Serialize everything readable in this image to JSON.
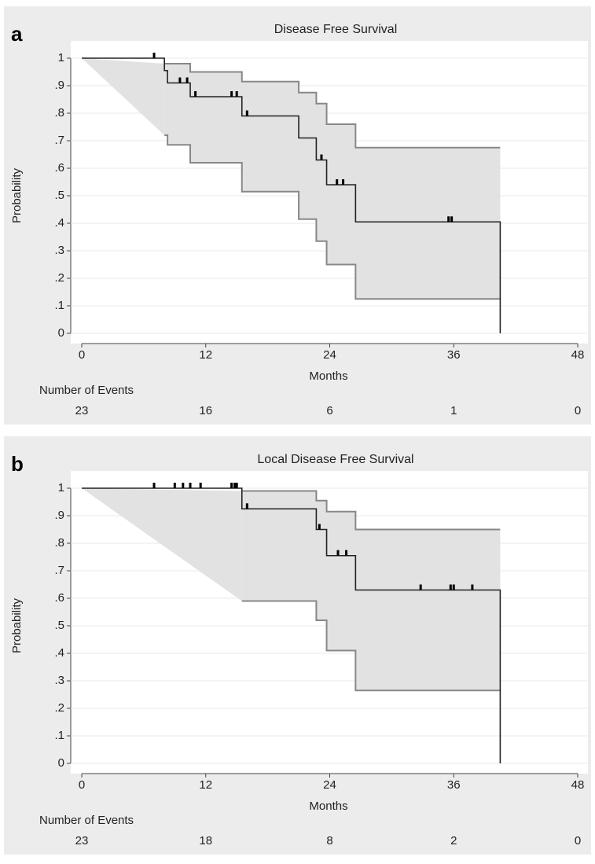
{
  "chart_data": [
    {
      "type": "step",
      "panel": "a",
      "title": "Disease Free Survival",
      "xlabel": "Months",
      "ylabel": "Probability",
      "xlim": [
        0,
        48
      ],
      "ylim": [
        0,
        1
      ],
      "xticks": [
        0,
        12,
        24,
        36,
        48
      ],
      "yticks": [
        0,
        {
          "value": 0.1,
          "label": ".1"
        },
        {
          "value": 0.2,
          "label": ".2"
        },
        {
          "value": 0.3,
          "label": ".3"
        },
        {
          "value": 0.4,
          "label": ".4"
        },
        {
          "value": 0.5,
          "label": ".5"
        },
        {
          "value": 0.6,
          "label": ".6"
        },
        {
          "value": 0.7,
          "label": ".7"
        },
        {
          "value": 0.8,
          "label": ".8"
        },
        {
          "value": 0.9,
          "label": ".9"
        },
        1
      ],
      "grid": true,
      "line_color": "#222222",
      "band_color": "#888888",
      "band_fill": "#e2e2e2",
      "survival": {
        "x": [
          0,
          8,
          8,
          8.3,
          8.3,
          10.5,
          10.5,
          15.5,
          15.5,
          21,
          21,
          22.7,
          22.7,
          23.7,
          23.7,
          26.5,
          26.5,
          40.5,
          40.5
        ],
        "y": [
          1,
          1,
          0.955,
          0.955,
          0.91,
          0.91,
          0.86,
          0.86,
          0.79,
          0.79,
          0.71,
          0.71,
          0.63,
          0.63,
          0.54,
          0.54,
          0.405,
          0.405,
          0
        ]
      },
      "upper": {
        "x": [
          8,
          10.5,
          10.5,
          15.5,
          15.5,
          21,
          21,
          22.7,
          22.7,
          23.7,
          23.7,
          26.5,
          26.5,
          40.5
        ],
        "y": [
          0.98,
          0.98,
          0.95,
          0.95,
          0.915,
          0.915,
          0.875,
          0.875,
          0.835,
          0.835,
          0.76,
          0.76,
          0.675,
          0.675
        ]
      },
      "lower": {
        "x": [
          8,
          8.3,
          8.3,
          10.5,
          10.5,
          15.5,
          15.5,
          21,
          21,
          22.7,
          22.7,
          23.7,
          23.7,
          26.5,
          26.5,
          40.5
        ],
        "y": [
          0.72,
          0.72,
          0.685,
          0.685,
          0.62,
          0.62,
          0.515,
          0.515,
          0.415,
          0.415,
          0.335,
          0.335,
          0.25,
          0.25,
          0.125,
          0.125
        ]
      },
      "censored": {
        "x": [
          7,
          9.5,
          10.2,
          11,
          14.5,
          15,
          16,
          23.2,
          24.7,
          25.3,
          35.5,
          35.8
        ],
        "y": [
          1,
          0.91,
          0.91,
          0.86,
          0.86,
          0.86,
          0.79,
          0.63,
          0.54,
          0.54,
          0.405,
          0.405
        ]
      },
      "events_label": "Number of Events",
      "events": [
        23,
        16,
        6,
        1,
        0
      ]
    },
    {
      "type": "step",
      "panel": "b",
      "title": "Local Disease Free Survival",
      "xlabel": "Months",
      "ylabel": "Probability",
      "xlim": [
        0,
        48
      ],
      "ylim": [
        0,
        1
      ],
      "xticks": [
        0,
        12,
        24,
        36,
        48
      ],
      "yticks": [
        0,
        {
          "value": 0.1,
          "label": ".1"
        },
        {
          "value": 0.2,
          "label": ".2"
        },
        {
          "value": 0.3,
          "label": ".3"
        },
        {
          "value": 0.4,
          "label": ".4"
        },
        {
          "value": 0.5,
          "label": ".5"
        },
        {
          "value": 0.6,
          "label": ".6"
        },
        {
          "value": 0.7,
          "label": ".7"
        },
        {
          "value": 0.8,
          "label": ".8"
        },
        {
          "value": 0.9,
          "label": ".9"
        },
        1
      ],
      "grid": true,
      "line_color": "#222222",
      "band_color": "#888888",
      "band_fill": "#e2e2e2",
      "survival": {
        "x": [
          0,
          15.5,
          15.5,
          22.7,
          22.7,
          23.7,
          23.7,
          26.5,
          26.5,
          40.5,
          40.5
        ],
        "y": [
          1,
          1,
          0.925,
          0.925,
          0.85,
          0.85,
          0.755,
          0.755,
          0.63,
          0.63,
          0
        ]
      },
      "upper": {
        "x": [
          15.5,
          22.7,
          22.7,
          23.7,
          23.7,
          26.5,
          26.5,
          40.5
        ],
        "y": [
          0.99,
          0.99,
          0.955,
          0.955,
          0.915,
          0.915,
          0.85,
          0.85
        ]
      },
      "lower": {
        "x": [
          15.5,
          22.7,
          22.7,
          23.7,
          23.7,
          26.5,
          26.5,
          40.5
        ],
        "y": [
          0.59,
          0.59,
          0.52,
          0.52,
          0.41,
          0.41,
          0.265,
          0.265
        ]
      },
      "censored": {
        "x": [
          7,
          9,
          9.8,
          10.5,
          11.5,
          14.5,
          14.8,
          15,
          16,
          23,
          24.8,
          25.6,
          32.8,
          35.7,
          36,
          37.8
        ],
        "y": [
          1,
          1,
          1,
          1,
          1,
          1,
          1,
          1,
          0.925,
          0.85,
          0.755,
          0.755,
          0.63,
          0.63,
          0.63,
          0.63
        ]
      },
      "events_label": "Number of Events",
      "events": [
        23,
        18,
        8,
        2,
        0
      ]
    }
  ]
}
